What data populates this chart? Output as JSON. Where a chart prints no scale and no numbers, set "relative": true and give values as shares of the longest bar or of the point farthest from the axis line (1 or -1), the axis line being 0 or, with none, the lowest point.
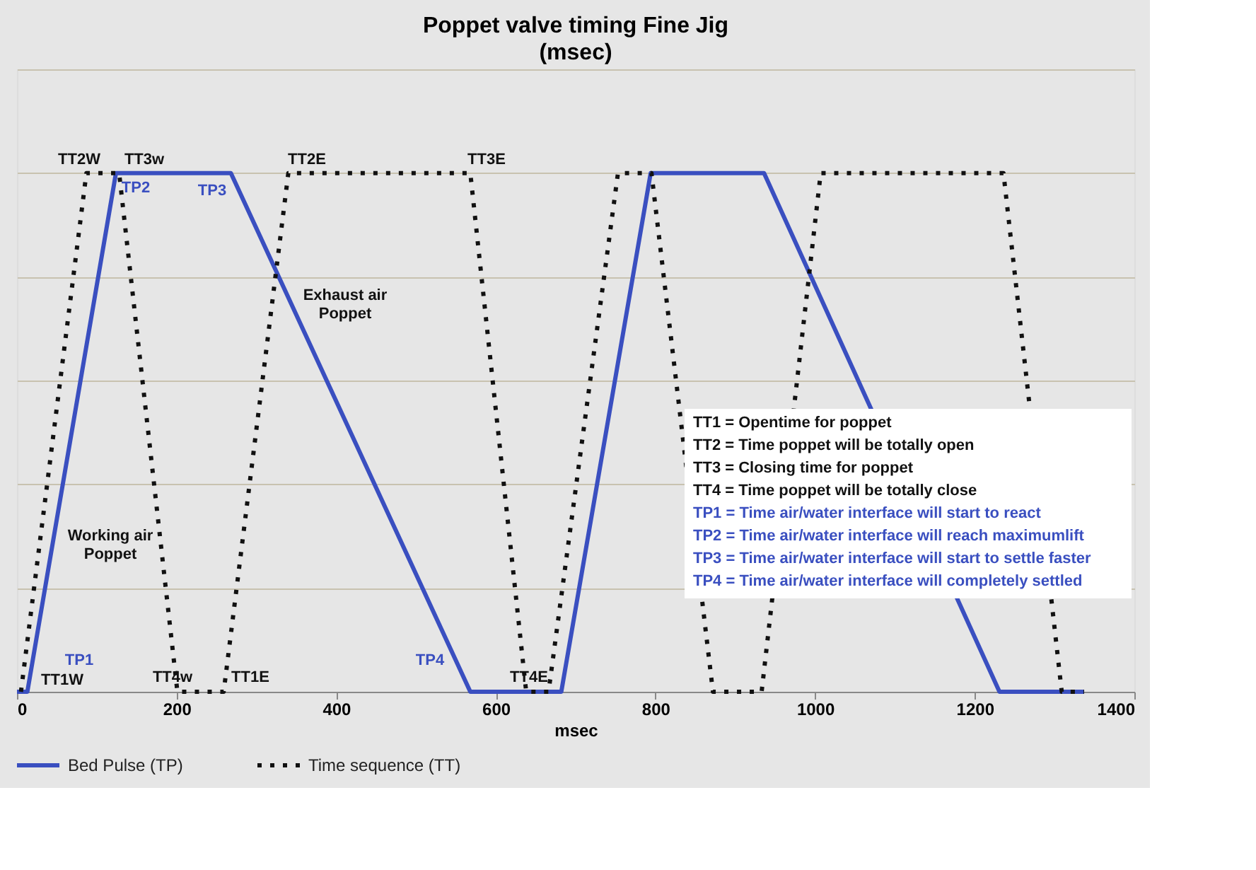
{
  "chart_data": {
    "type": "line",
    "title": "Poppet valve timing  Fine Jig",
    "subtitle": "(msec)",
    "xlabel": "msec",
    "relative": true,
    "xlim": [
      0,
      1400
    ],
    "xticks": [
      0,
      200,
      400,
      600,
      800,
      1000,
      1200,
      1400
    ],
    "grid": "y",
    "legend": "bottom left",
    "marker": "none",
    "series": [
      {
        "name": "Bed Pulse (TP)",
        "color": "#3a4fc0",
        "line_style": "solid",
        "x": [
          0,
          13,
          124,
          268,
          568,
          682,
          794,
          936,
          1231,
          1337
        ],
        "values": [
          0,
          0,
          1,
          1,
          0,
          0,
          1,
          1,
          0,
          0
        ]
      },
      {
        "name": "Time sequence (TT)",
        "color": "#111111",
        "line_style": "dotted",
        "x": [
          5,
          87,
          128,
          201,
          259,
          340,
          568,
          638,
          666,
          753,
          795,
          872,
          933,
          1007,
          1236,
          1309,
          1337
        ],
        "values": [
          0,
          1,
          1,
          0,
          0,
          1,
          1,
          0,
          0,
          1,
          1,
          0,
          0,
          1,
          1,
          0,
          0
        ]
      }
    ],
    "annotations": [
      "TP1",
      "TP2",
      "TP3",
      "TP4",
      "TT1W",
      "TT2W",
      "TT3w",
      "TT4w",
      "TT1E",
      "TT2E",
      "TT3E",
      "TT4E",
      "Working air Poppet",
      "Exhaust air Poppet",
      "TT1 = Opentime for poppet",
      "TT2 = Time poppet will be totally open",
      "TT3 = Closing time for poppet",
      "TT4 = Time poppet will be totally close",
      "TP1 = Time air/water interface will start to react",
      "TP2 = Time air/water interface will reach maximumlift",
      "TP3 = Time air/water interface will start to settle faster",
      "TP4 = Time air/water interface will completely settled"
    ]
  }
}
